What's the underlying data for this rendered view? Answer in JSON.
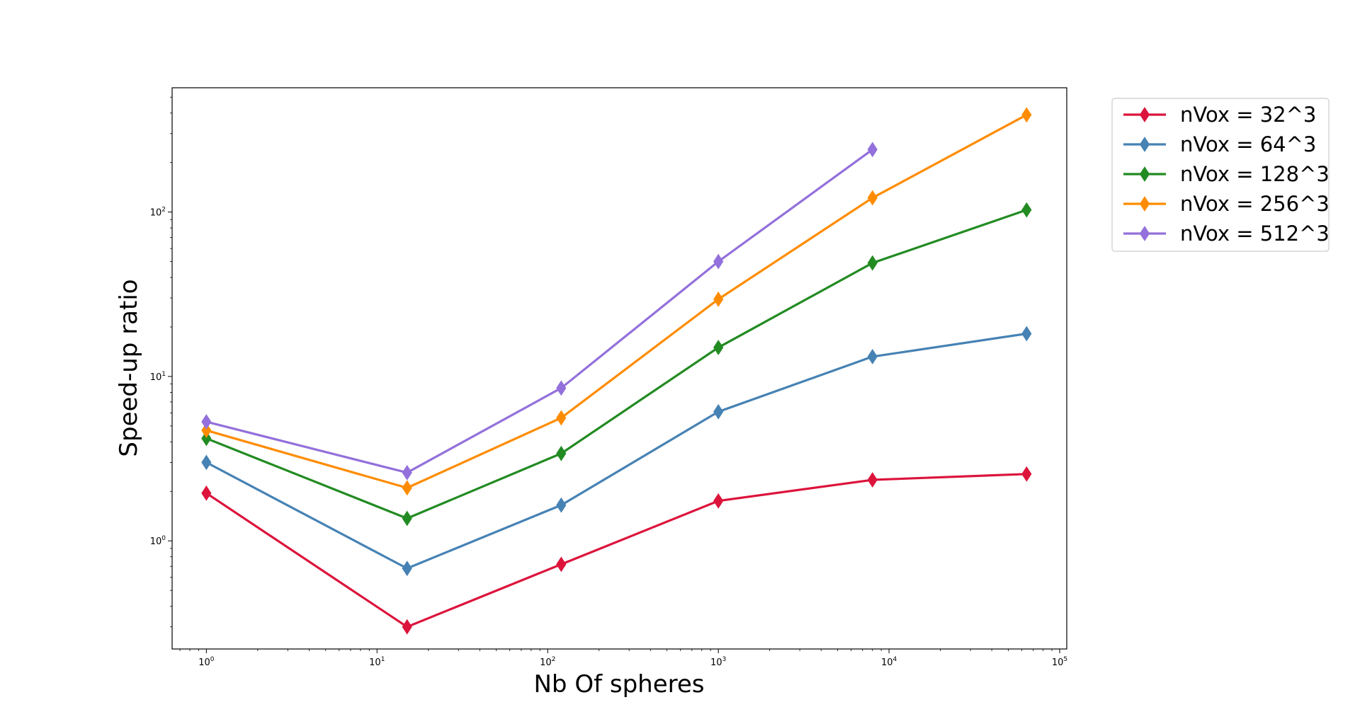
{
  "chart_data": {
    "type": "line",
    "xlabel": "Nb Of spheres",
    "ylabel": "Speed-up ratio",
    "x_scale": "log",
    "y_scale": "log",
    "xlim": [
      0.63,
      110000
    ],
    "ylim": [
      0.22,
      570
    ],
    "x_ticks": [
      1,
      10,
      100,
      1000,
      10000,
      100000
    ],
    "x_tick_labels": [
      {
        "base": "10",
        "exp": "0"
      },
      {
        "base": "10",
        "exp": "1"
      },
      {
        "base": "10",
        "exp": "2"
      },
      {
        "base": "10",
        "exp": "3"
      },
      {
        "base": "10",
        "exp": "4"
      },
      {
        "base": "10",
        "exp": "5"
      }
    ],
    "y_ticks": [
      1,
      10,
      100
    ],
    "y_tick_labels": [
      {
        "base": "10",
        "exp": "0"
      },
      {
        "base": "10",
        "exp": "1"
      },
      {
        "base": "10",
        "exp": "2"
      }
    ],
    "grid": false,
    "legend_position": "outside-top-right",
    "marker": "diamond",
    "x": [
      1,
      15,
      120,
      1000,
      8000,
      64000
    ],
    "series": [
      {
        "name": "nVox = 32^3",
        "color": "#dc143c",
        "values": [
          1.95,
          0.3,
          0.72,
          1.75,
          2.35,
          2.55
        ]
      },
      {
        "name": "nVox = 64^3",
        "color": "#4682b4",
        "values": [
          3.0,
          0.68,
          1.65,
          6.1,
          13.2,
          18.2
        ]
      },
      {
        "name": "nVox = 128^3",
        "color": "#228b22",
        "values": [
          4.2,
          1.37,
          3.4,
          15.0,
          49.0,
          103.0
        ]
      },
      {
        "name": "nVox = 256^3",
        "color": "#ff8c00",
        "values": [
          4.7,
          2.1,
          5.6,
          29.5,
          122.0,
          390.0
        ]
      },
      {
        "name": "nVox = 512^3",
        "color": "#9370db",
        "values": [
          5.3,
          2.6,
          8.5,
          50.0,
          240.0,
          null
        ]
      }
    ]
  }
}
